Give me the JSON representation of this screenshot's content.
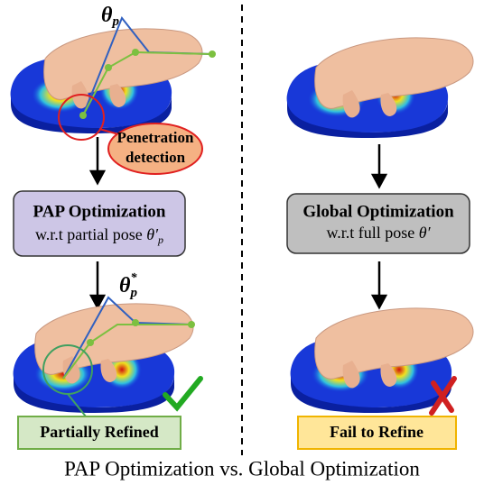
{
  "left": {
    "theta_label": {
      "symbol": "θ",
      "subscript": "p"
    },
    "callout": {
      "line1": "Penetration",
      "line2": "detection"
    },
    "box": {
      "title": "PAP Optimization",
      "subtitle": "w.r.t partial pose ",
      "symbol": "θ′",
      "subscript": "p"
    },
    "theta_star_label": {
      "symbol": "θ",
      "superscript": "*",
      "subscript": "p"
    },
    "result": "Partially Refined"
  },
  "right": {
    "box": {
      "title": "Global  Optimization",
      "subtitle": "w.r.t full pose ",
      "symbol": "θ′"
    },
    "result": "Fail to Refine"
  },
  "caption": "PAP Optimization vs. Global  Optimization"
}
